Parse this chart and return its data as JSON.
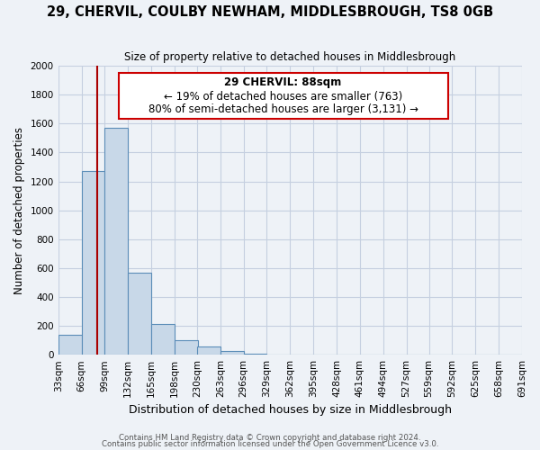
{
  "title": "29, CHERVIL, COULBY NEWHAM, MIDDLESBROUGH, TS8 0GB",
  "subtitle": "Size of property relative to detached houses in Middlesbrough",
  "xlabel": "Distribution of detached houses by size in Middlesbrough",
  "ylabel": "Number of detached properties",
  "bar_values": [
    140,
    1270,
    1570,
    570,
    215,
    100,
    55,
    25,
    10,
    0,
    0,
    0,
    0,
    0,
    0,
    0,
    0,
    0,
    0,
    0
  ],
  "bin_left_edges": [
    33,
    66,
    99,
    132,
    165,
    198,
    230,
    263,
    296,
    329,
    362,
    395,
    428,
    461,
    494,
    527,
    559,
    592,
    625,
    658
  ],
  "bin_labels": [
    "33sqm",
    "66sqm",
    "99sqm",
    "132sqm",
    "165sqm",
    "198sqm",
    "230sqm",
    "263sqm",
    "296sqm",
    "329sqm",
    "362sqm",
    "395sqm",
    "428sqm",
    "461sqm",
    "494sqm",
    "527sqm",
    "559sqm",
    "592sqm",
    "625sqm",
    "658sqm",
    "691sqm"
  ],
  "bar_color": "#c8d8e8",
  "bar_edge_color": "#5b8db8",
  "vline_x": 88,
  "vline_color": "#aa0000",
  "ylim": [
    0,
    2000
  ],
  "yticks": [
    0,
    200,
    400,
    600,
    800,
    1000,
    1200,
    1400,
    1600,
    1800,
    2000
  ],
  "annotation_title": "29 CHERVIL: 88sqm",
  "annotation_line1": "← 19% of detached houses are smaller (763)",
  "annotation_line2": "80% of semi-detached houses are larger (3,131) →",
  "annotation_box_color": "#ffffff",
  "annotation_box_edge": "#cc0000",
  "footer1": "Contains HM Land Registry data © Crown copyright and database right 2024.",
  "footer2": "Contains public sector information licensed under the Open Government Licence v3.0.",
  "background_color": "#eef2f7",
  "grid_color": "#c5cfe0"
}
